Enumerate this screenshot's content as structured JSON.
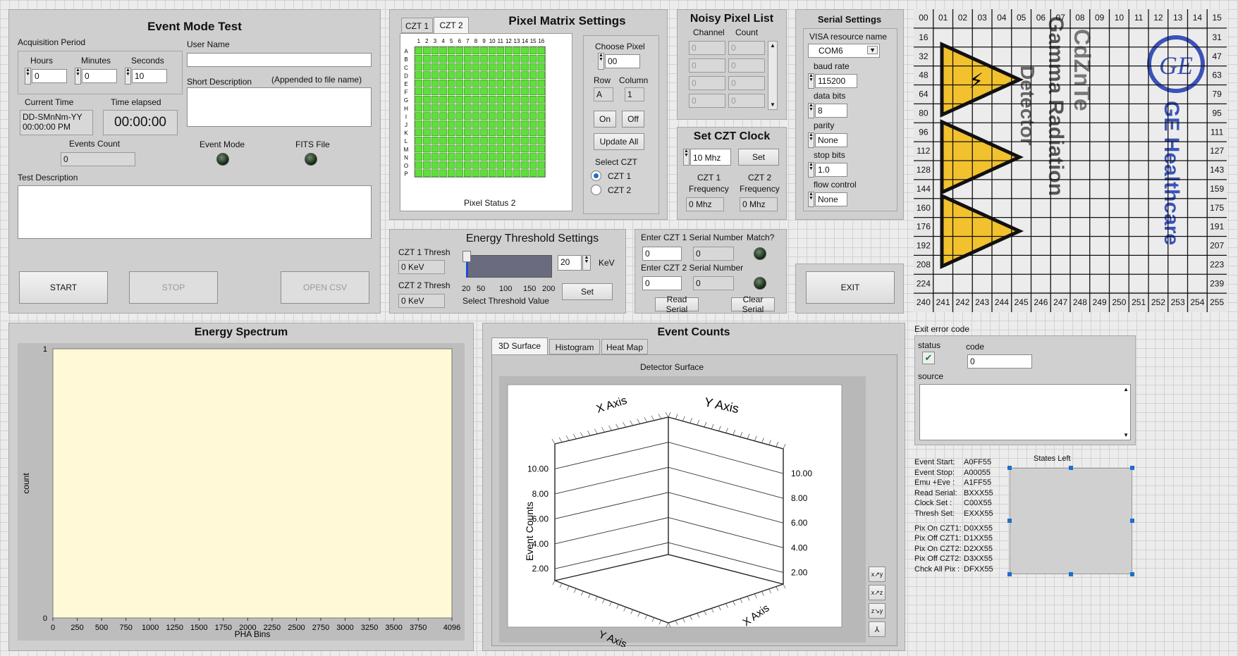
{
  "event_mode": {
    "title": "Event Mode Test",
    "acq_label": "Acquisition Period",
    "hours_label": "Hours",
    "hours": "0",
    "minutes_label": "Minutes",
    "minutes": "0",
    "seconds_label": "Seconds",
    "seconds": "10",
    "user_name_label": "User Name",
    "user_name": "",
    "short_desc_label": "Short Description",
    "short_desc_note": "(Appended to file name)",
    "short_desc": "",
    "current_time_label": "Current Time",
    "current_time_line1": "DD-SMnNm-YY",
    "current_time_line2": "00:00:00 PM",
    "time_elapsed_label": "Time elapsed",
    "time_elapsed": "00:00:00",
    "events_count_label": "Events Count",
    "events_count": "0",
    "event_mode_label": "Event Mode",
    "fits_file_label": "FITS File",
    "test_desc_label": "Test Description",
    "test_desc": "",
    "start": "START",
    "stop": "STOP",
    "open_csv": "OPEN CSV"
  },
  "pixel_matrix": {
    "title": "Pixel Matrix Settings",
    "tabs": [
      "CZT 1",
      "CZT 2"
    ],
    "cols": [
      "1",
      "2",
      "3",
      "4",
      "5",
      "6",
      "7",
      "8",
      "9",
      "10",
      "11",
      "12",
      "13",
      "14",
      "15",
      "16"
    ],
    "rows": [
      "A",
      "B",
      "C",
      "D",
      "E",
      "F",
      "G",
      "H",
      "I",
      "J",
      "K",
      "L",
      "M",
      "N",
      "O",
      "P"
    ],
    "status_label": "Pixel Status 2",
    "choose_pixel_label": "Choose Pixel",
    "choose_pixel": "00",
    "row_label": "Row",
    "row": "A",
    "column_label": "Column",
    "column": "1",
    "on": "On",
    "off": "Off",
    "update_all": "Update All",
    "select_czt_label": "Select CZT",
    "czt1": "CZT 1",
    "czt2": "CZT 2"
  },
  "noisy": {
    "title": "Noisy Pixel List",
    "channel_label": "Channel",
    "count_label": "Count",
    "rows": [
      [
        "0",
        "0"
      ],
      [
        "0",
        "0"
      ],
      [
        "0",
        "0"
      ],
      [
        "0",
        "0"
      ]
    ]
  },
  "clock": {
    "title": "Set CZT Clock",
    "value": "10 Mhz",
    "set": "Set",
    "czt1_freq_label1": "CZT 1",
    "czt1_freq_label2": "Frequency",
    "czt1_freq": "0 Mhz",
    "czt2_freq_label1": "CZT 2",
    "czt2_freq_label2": "Frequency",
    "czt2_freq": "0 Mhz"
  },
  "serial": {
    "title": "Serial Settings",
    "visa_label": "VISA resource name",
    "visa": "COM6",
    "baud_label": "baud rate",
    "baud": "115200",
    "data_bits_label": "data bits",
    "data_bits": "8",
    "parity_label": "parity",
    "parity": "None",
    "stop_bits_label": "stop bits",
    "stop_bits": "1.0",
    "flow_label": "flow control",
    "flow": "None"
  },
  "threshold": {
    "title": "Energy Threshold Settings",
    "czt1_label": "CZT 1 Thresh",
    "czt1": "0 KeV",
    "czt2_label": "CZT 2 Thresh",
    "czt2": "0 KeV",
    "slider_ticks": [
      "20",
      "50",
      "100",
      "150",
      "200"
    ],
    "slider_level": "20",
    "select_label": "Select Threshold Value",
    "value": "20",
    "unit": "KeV",
    "set": "Set"
  },
  "serial_number": {
    "czt1_label": "Enter CZT 1 Serial Number",
    "czt1_a": "0",
    "czt1_b": "0",
    "czt2_label": "Enter CZT 2 Serial Number",
    "czt2_a": "0",
    "czt2_b": "0",
    "match_label": "Match?",
    "read": "Read Serial",
    "clear": "Clear Serial"
  },
  "exit_label": "EXIT",
  "detector_image": {
    "top": [
      "00",
      "01",
      "02",
      "03",
      "04",
      "05",
      "06",
      "07",
      "08",
      "09",
      "10",
      "11",
      "12",
      "13",
      "14",
      "15"
    ],
    "left": [
      "16",
      "32",
      "48",
      "64",
      "80",
      "96",
      "112",
      "128",
      "144",
      "160",
      "176",
      "192",
      "208",
      "224",
      "240"
    ],
    "right": [
      "31",
      "47",
      "63",
      "79",
      "95",
      "111",
      "127",
      "143",
      "159",
      "175",
      "191",
      "207",
      "223",
      "239",
      "255"
    ],
    "bottom": [
      "241",
      "242",
      "243",
      "244",
      "245",
      "246",
      "247",
      "248",
      "249",
      "250",
      "251",
      "252",
      "253",
      "254"
    ],
    "text1": "CdZnTe",
    "text2": "Gamma Radiation",
    "text3": "Detector",
    "brand": "GE Healthcare",
    "logo": "GE"
  },
  "spectrum": {
    "title": "Energy Spectrum",
    "xlabel": "PHA Bins",
    "ylabel": "count",
    "y_ticks": [
      "1",
      "0"
    ],
    "x_ticks": [
      "0",
      "250",
      "500",
      "750",
      "1000",
      "1250",
      "1500",
      "1750",
      "2000",
      "2250",
      "2500",
      "2750",
      "3000",
      "3250",
      "3500",
      "3750",
      "4096"
    ]
  },
  "event_counts": {
    "title": "Event Counts",
    "tabs": [
      "3D Surface",
      "Histogram",
      "Heat Map"
    ],
    "graph_title": "Detector Surface",
    "x_axis": "X Axis",
    "y_axis": "Y Axis",
    "z_axis": "Event Counts",
    "z_ticks": [
      "10.00",
      "8.00",
      "6.00",
      "4.00",
      "2.00"
    ]
  },
  "exit_error": {
    "title": "Exit error code",
    "status_label": "status",
    "code_label": "code",
    "code": "0",
    "source_label": "source"
  },
  "commands": {
    "items": [
      [
        "Event Start:",
        "A0FF55"
      ],
      [
        "Event Stop:",
        "A00055"
      ],
      [
        "Emu +Eve :",
        "A1FF55"
      ],
      [
        "Read Serial:",
        "BXXX55"
      ],
      [
        "Clock Set  :",
        "C00X55"
      ],
      [
        "Thresh Set:",
        "EXXX55"
      ],
      [
        "Pix On  CZT1:",
        "D0XX55"
      ],
      [
        "Pix Off  CZT1:",
        "D1XX55"
      ],
      [
        "Pix On  CZT2:",
        "D2XX55"
      ],
      [
        "Pix Off  CZT2:",
        "D3XX55"
      ],
      [
        "Chck All Pix  :",
        "DFXX55"
      ]
    ],
    "states_left_label": "States Left"
  },
  "colors": {
    "panel": "#cfcfcf",
    "pixel_on": "#5ee038",
    "plot_bg": "#fff9d8",
    "accent": "#1e6fc9"
  }
}
